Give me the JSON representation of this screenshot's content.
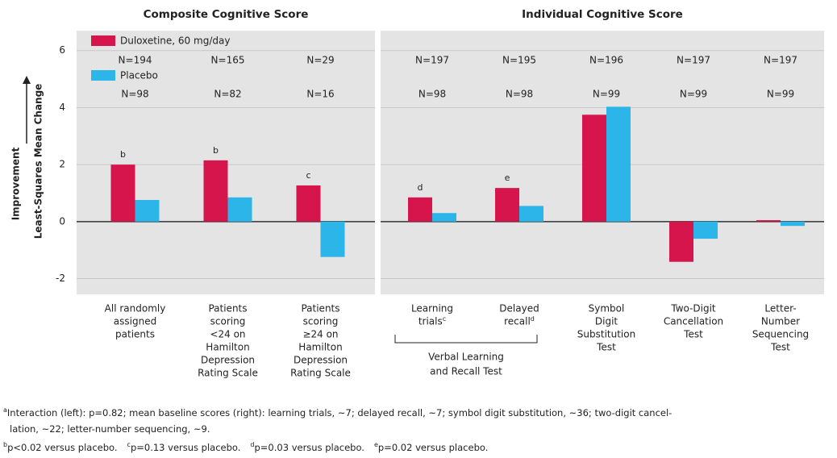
{
  "y_axis_label": "Least-Squares Mean Change",
  "direction_label": "Improvement",
  "chart_data": [
    {
      "type": "bar",
      "title": "Composite Cognitive Score",
      "categories": [
        [
          "All randomly",
          "assigned",
          "patients"
        ],
        [
          "Patients",
          "scoring",
          "<24 on",
          "Hamilton",
          "Depression",
          "Rating Scale"
        ],
        [
          "Patients",
          "scoring",
          "≥24 on",
          "Hamilton",
          "Depression",
          "Rating Scale"
        ]
      ],
      "markers": [
        "b",
        "b",
        "c"
      ],
      "series": [
        {
          "name": "Duloxetine, 60 mg/day",
          "color": "#d5154b",
          "values": [
            2.0,
            2.15,
            1.27
          ],
          "n_labels": [
            "N=194",
            "N=165",
            "N=29"
          ]
        },
        {
          "name": "Placebo",
          "color": "#2bb5e8",
          "values": [
            0.76,
            0.85,
            -1.24
          ],
          "n_labels": [
            "N=98",
            "N=82",
            "N=16"
          ]
        }
      ],
      "ylim": [
        -2.55,
        6.7
      ],
      "yticks": [
        -2,
        0,
        2,
        4,
        6
      ],
      "grid": true
    },
    {
      "type": "bar",
      "title": "Individual Cognitive Score",
      "categories": [
        [
          "Learning",
          "trials"
        ],
        [
          "Delayed",
          "recall"
        ],
        [
          "Symbol",
          "Digit",
          "Substitution",
          "Test"
        ],
        [
          "Two-Digit",
          "Cancellation",
          "Test"
        ],
        [
          "Letter-",
          "Number",
          "Sequencing",
          "Test"
        ]
      ],
      "category_notes": [
        "c",
        "d",
        null,
        null,
        null
      ],
      "markers": [
        "d",
        "e",
        null,
        null,
        null
      ],
      "group_label": [
        "Verbal Learning",
        "and Recall Test"
      ],
      "series": [
        {
          "color": "#d5154b",
          "values": [
            0.85,
            1.18,
            3.75,
            -1.41,
            0.05
          ],
          "n_labels": [
            "N=197",
            "N=195",
            "N=196",
            "N=197",
            "N=197"
          ]
        },
        {
          "color": "#2bb5e8",
          "values": [
            0.3,
            0.55,
            4.03,
            -0.6,
            -0.15
          ],
          "n_labels": [
            "N=98",
            "N=98",
            "N=99",
            "N=99",
            "N=99"
          ]
        }
      ],
      "grid": true
    }
  ],
  "footnotes": [
    {
      "mark": "a",
      "text": [
        "Interaction (left): p=0.82; mean baseline scores (right): learning trials, ~7; delayed recall, ~7; symbol digit substitution, ~36; two-digit cancel-",
        "lation, ~22; letter-number sequencing, ~9."
      ]
    },
    {
      "mark": "b",
      "text": [
        "p<0.02 versus placebo."
      ]
    },
    {
      "mark": "c",
      "text": [
        "p=0.13 versus placebo."
      ]
    },
    {
      "mark": "d",
      "text": [
        "p=0.03 versus placebo."
      ]
    },
    {
      "mark": "e",
      "text": [
        "p=0.02 versus placebo."
      ]
    }
  ]
}
